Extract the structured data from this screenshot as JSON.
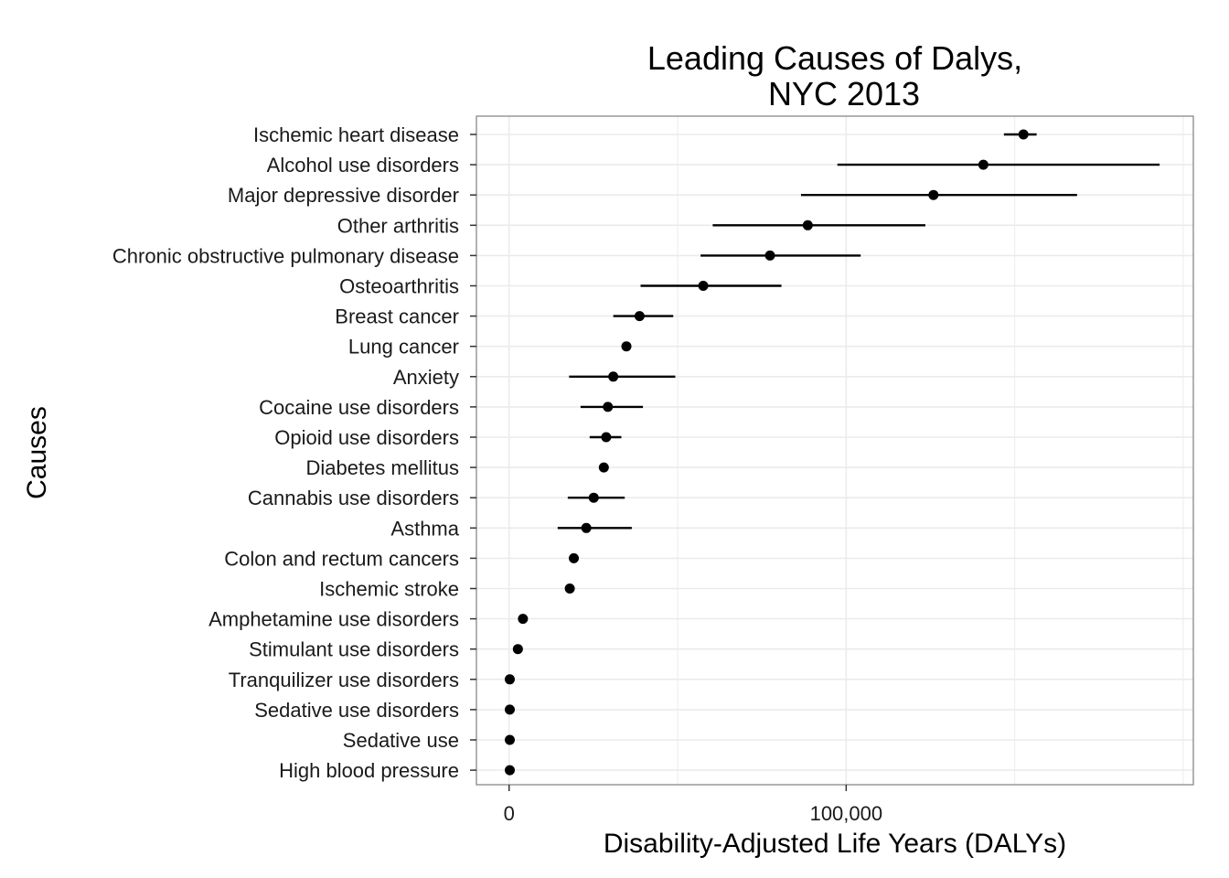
{
  "chart_data": {
    "type": "scatter",
    "subtype": "point-range",
    "title": [
      "Leading Causes of Dalys,",
      "NYC 2013"
    ],
    "xlabel": "Disability-Adjusted Life Years (DALYs)",
    "ylabel": "Causes",
    "xlim": [
      -9700,
      203000
    ],
    "xticks": [
      0,
      100000
    ],
    "xtick_labels": [
      "0",
      "100,000"
    ],
    "grid": true,
    "colors": {
      "marker": "#000000",
      "grid": "#ebebeb",
      "border": "#7f7f7f"
    },
    "categories": [
      "Ischemic heart disease",
      "Alcohol use disorders",
      "Major depressive disorder",
      "Other arthritis",
      "Chronic obstructive pulmonary disease",
      "Osteoarthritis",
      "Breast cancer",
      "Lung cancer",
      "Anxiety",
      "Cocaine use disorders",
      "Opioid use disorders",
      "Diabetes mellitus",
      "Cannabis use disorders",
      "Asthma",
      "Colon and rectum cancers",
      "Ischemic stroke",
      "Amphetamine use disorders",
      "Stimulant use disorders",
      "Tranquilizer use disorders",
      "Sedative use disorders",
      "Sedative use",
      "High blood pressure"
    ],
    "series": [
      {
        "values": [
          152600,
          140700,
          125900,
          88600,
          77400,
          57600,
          38700,
          34800,
          30900,
          29300,
          28800,
          28100,
          25100,
          22900,
          19200,
          18000,
          4100,
          2600,
          200,
          200,
          200,
          200
        ],
        "lower": [
          146800,
          97400,
          86600,
          60400,
          56800,
          39000,
          30900,
          33400,
          17800,
          21200,
          23900,
          26700,
          17400,
          14400,
          18300,
          17400,
          3200,
          2200,
          0,
          0,
          0,
          0
        ],
        "upper": [
          156500,
          193000,
          168500,
          123500,
          104300,
          80800,
          48700,
          36200,
          49300,
          39700,
          33300,
          29500,
          34300,
          36400,
          20100,
          18600,
          5000,
          3000,
          400,
          400,
          400,
          400
        ]
      }
    ]
  }
}
